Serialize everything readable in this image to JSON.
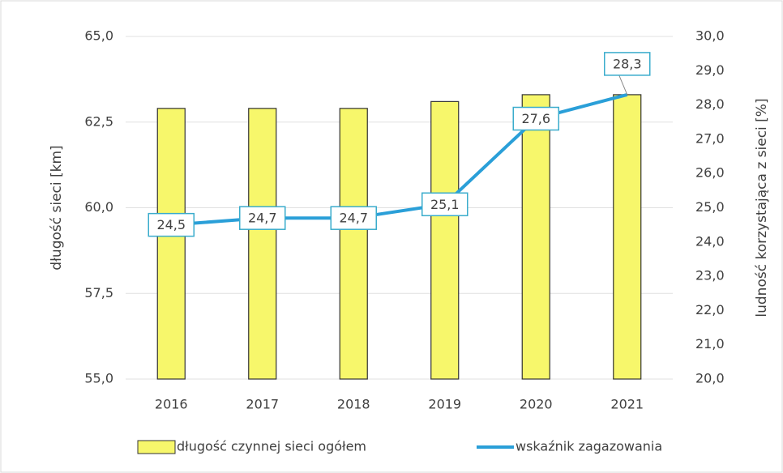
{
  "chart_data": {
    "type": "bar-line",
    "categories": [
      "2016",
      "2017",
      "2018",
      "2019",
      "2020",
      "2021"
    ],
    "series": [
      {
        "name": "długość czynnej sieci ogółem",
        "type": "bar",
        "color": "#f7f76b",
        "values": [
          62.9,
          62.9,
          62.9,
          63.1,
          63.3,
          63.3
        ]
      },
      {
        "name": "wskaźnik zagazowania",
        "type": "line",
        "axis": "y2",
        "color": "#2a9fd8",
        "values": [
          24.5,
          24.7,
          24.7,
          25.1,
          27.6,
          28.3
        ],
        "value_labels": [
          "24,5",
          "24,7",
          "24,7",
          "25,1",
          "27,6",
          "28,3"
        ]
      }
    ],
    "ylabel": "długość sieci [km]",
    "y2label": "ludność korzystająca z sieci [%]",
    "ylim": [
      55,
      65
    ],
    "yticks": [
      {
        "value": 55,
        "label": "55,0"
      },
      {
        "value": 57.5,
        "label": "57,5"
      },
      {
        "value": 60,
        "label": "60,0"
      },
      {
        "value": 62.5,
        "label": "62,5"
      },
      {
        "value": 65,
        "label": "65,0"
      }
    ],
    "y2lim": [
      20,
      30
    ],
    "y2ticks": [
      {
        "value": 20,
        "label": "20,0"
      },
      {
        "value": 21,
        "label": "21,0"
      },
      {
        "value": 22,
        "label": "22,0"
      },
      {
        "value": 23,
        "label": "23,0"
      },
      {
        "value": 24,
        "label": "24,0"
      },
      {
        "value": 25,
        "label": "25,0"
      },
      {
        "value": 26,
        "label": "26,0"
      },
      {
        "value": 27,
        "label": "27,0"
      },
      {
        "value": 28,
        "label": "28,0"
      },
      {
        "value": 29,
        "label": "29,0"
      },
      {
        "value": 30,
        "label": "30,0"
      }
    ],
    "grid": true,
    "legend": "bottom"
  }
}
